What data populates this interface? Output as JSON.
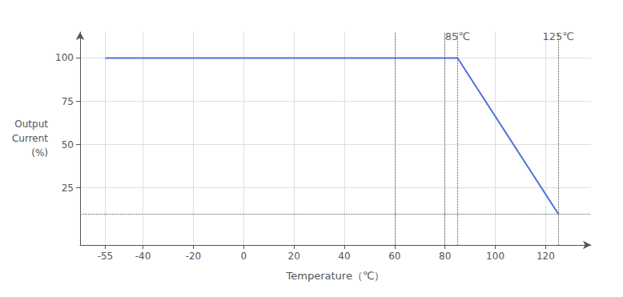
{
  "chart_data": {
    "type": "line",
    "xlabel": "Temperature（℃）",
    "ylabel": [
      "Output",
      "Current",
      "(%)"
    ],
    "x": [
      -55,
      85,
      125
    ],
    "values": [
      100,
      100,
      10
    ],
    "xlim": [
      -65,
      138
    ],
    "ylim": [
      -8,
      115
    ],
    "xticks": [
      -55,
      -40,
      -20,
      0,
      20,
      40,
      60,
      80,
      100,
      120
    ],
    "yticks": [
      25,
      50,
      75,
      100
    ],
    "grid": true,
    "vlines": [
      60,
      80,
      85,
      125
    ],
    "hlines": [
      10
    ],
    "annotations": [
      {
        "text": "85℃",
        "x": 85,
        "y": 107
      },
      {
        "text": "125℃",
        "x": 125,
        "y": 107
      }
    ]
  }
}
